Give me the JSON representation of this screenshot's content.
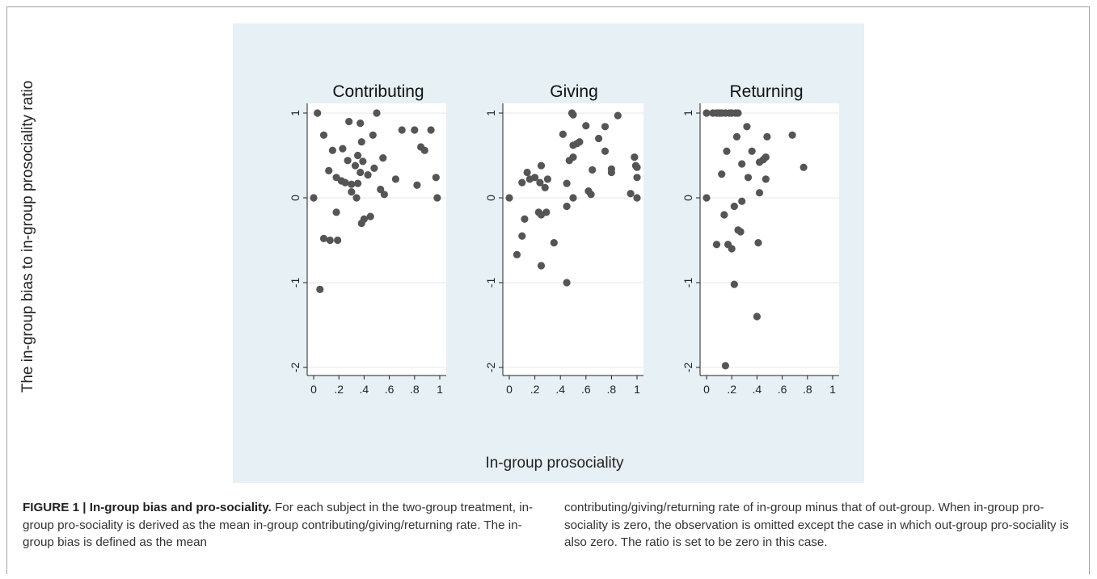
{
  "figure": {
    "y_axis_title": "The in-group bias to in-group prosociality ratio",
    "x_axis_title": "In-group prosociality"
  },
  "caption": {
    "label": "FIGURE 1 | In-group bias and pro-sociality.",
    "col1": "For each subject in the two-group treatment, in-group pro-sociality is derived as the mean in-group contributing/giving/returning rate. The in-group bias is defined as the mean",
    "col2": "contributing/giving/returning rate of in-group minus that of out-group. When in-group pro-sociality is zero, the observation is omitted except the case in which out-group pro-sociality is also zero. The ratio is set to be zero in this case."
  },
  "colors": {
    "background": "#e7f0f4",
    "panel": "#ffffff",
    "marker": "#555555",
    "grid": "#e8eef0"
  },
  "chart_data": [
    {
      "type": "scatter",
      "title": "Contributing",
      "xlim": [
        0,
        1
      ],
      "ylim": [
        -2,
        1
      ],
      "x_ticks": [
        "0",
        ".2",
        ".4",
        ".6",
        ".8",
        "1"
      ],
      "y_ticks": [
        "-2",
        "-1",
        "0",
        "1"
      ],
      "grid": true,
      "points": [
        [
          0.0,
          0.0
        ],
        [
          0.03,
          1.0
        ],
        [
          0.05,
          -1.08
        ],
        [
          0.08,
          0.74
        ],
        [
          0.08,
          -0.48
        ],
        [
          0.12,
          0.32
        ],
        [
          0.13,
          -0.5
        ],
        [
          0.15,
          0.56
        ],
        [
          0.18,
          -0.17
        ],
        [
          0.18,
          0.24
        ],
        [
          0.19,
          -0.5
        ],
        [
          0.22,
          0.2
        ],
        [
          0.23,
          0.58
        ],
        [
          0.25,
          0.18
        ],
        [
          0.27,
          0.44
        ],
        [
          0.28,
          0.9
        ],
        [
          0.3,
          0.07
        ],
        [
          0.3,
          0.16
        ],
        [
          0.33,
          0.38
        ],
        [
          0.34,
          0.0
        ],
        [
          0.35,
          0.5
        ],
        [
          0.35,
          0.17
        ],
        [
          0.37,
          0.88
        ],
        [
          0.37,
          0.3
        ],
        [
          0.38,
          0.66
        ],
        [
          0.38,
          -0.3
        ],
        [
          0.39,
          0.43
        ],
        [
          0.4,
          -0.25
        ],
        [
          0.43,
          0.27
        ],
        [
          0.45,
          -0.22
        ],
        [
          0.47,
          0.74
        ],
        [
          0.48,
          0.35
        ],
        [
          0.5,
          1.0
        ],
        [
          0.53,
          0.1
        ],
        [
          0.55,
          0.47
        ],
        [
          0.56,
          0.04
        ],
        [
          0.65,
          0.22
        ],
        [
          0.7,
          0.8
        ],
        [
          0.8,
          0.8
        ],
        [
          0.82,
          0.15
        ],
        [
          0.85,
          0.6
        ],
        [
          0.88,
          0.56
        ],
        [
          0.93,
          0.8
        ],
        [
          0.97,
          0.24
        ],
        [
          0.98,
          0.0
        ]
      ]
    },
    {
      "type": "scatter",
      "title": "Giving",
      "xlim": [
        0,
        1
      ],
      "ylim": [
        -2,
        1
      ],
      "x_ticks": [
        "0",
        ".2",
        ".4",
        ".6",
        ".8",
        "1"
      ],
      "y_ticks": [
        "-2",
        "-1",
        "0",
        "1"
      ],
      "grid": true,
      "points": [
        [
          0.0,
          0.0
        ],
        [
          0.06,
          -0.67
        ],
        [
          0.1,
          0.18
        ],
        [
          0.1,
          -0.45
        ],
        [
          0.12,
          -0.25
        ],
        [
          0.14,
          0.3
        ],
        [
          0.16,
          0.22
        ],
        [
          0.2,
          0.24
        ],
        [
          0.23,
          -0.17
        ],
        [
          0.24,
          0.18
        ],
        [
          0.25,
          0.38
        ],
        [
          0.25,
          -0.2
        ],
        [
          0.25,
          -0.8
        ],
        [
          0.28,
          0.12
        ],
        [
          0.29,
          -0.17
        ],
        [
          0.3,
          0.22
        ],
        [
          0.35,
          -0.53
        ],
        [
          0.42,
          0.75
        ],
        [
          0.45,
          0.17
        ],
        [
          0.45,
          -0.1
        ],
        [
          0.45,
          -1.0
        ],
        [
          0.47,
          0.44
        ],
        [
          0.49,
          1.0
        ],
        [
          0.5,
          0.98
        ],
        [
          0.5,
          0.62
        ],
        [
          0.5,
          0.48
        ],
        [
          0.5,
          0.0
        ],
        [
          0.53,
          0.64
        ],
        [
          0.55,
          0.66
        ],
        [
          0.6,
          0.85
        ],
        [
          0.62,
          0.08
        ],
        [
          0.64,
          0.04
        ],
        [
          0.65,
          0.33
        ],
        [
          0.7,
          0.7
        ],
        [
          0.75,
          0.84
        ],
        [
          0.75,
          0.55
        ],
        [
          0.8,
          0.34
        ],
        [
          0.8,
          0.3
        ],
        [
          0.85,
          0.97
        ],
        [
          0.95,
          0.05
        ],
        [
          0.98,
          0.48
        ],
        [
          0.99,
          0.38
        ],
        [
          1.0,
          0.36
        ],
        [
          1.0,
          0.24
        ],
        [
          1.0,
          0.0
        ]
      ]
    },
    {
      "type": "scatter",
      "title": "Returning",
      "xlim": [
        0,
        1
      ],
      "ylim": [
        -2,
        1
      ],
      "x_ticks": [
        "0",
        ".2",
        ".4",
        ".6",
        ".8",
        "1"
      ],
      "y_ticks": [
        "-2",
        "-1",
        "0",
        "1"
      ],
      "grid": true,
      "points": [
        [
          0.0,
          0.0
        ],
        [
          0.0,
          1.0
        ],
        [
          0.05,
          1.0
        ],
        [
          0.08,
          1.0
        ],
        [
          0.1,
          1.0
        ],
        [
          0.12,
          1.0
        ],
        [
          0.15,
          1.0
        ],
        [
          0.18,
          1.0
        ],
        [
          0.2,
          1.0
        ],
        [
          0.23,
          1.0
        ],
        [
          0.25,
          1.0
        ],
        [
          0.08,
          -0.55
        ],
        [
          0.12,
          0.28
        ],
        [
          0.14,
          -0.2
        ],
        [
          0.15,
          -1.98
        ],
        [
          0.16,
          0.55
        ],
        [
          0.17,
          -0.55
        ],
        [
          0.2,
          -0.6
        ],
        [
          0.22,
          -0.1
        ],
        [
          0.22,
          -1.02
        ],
        [
          0.24,
          0.72
        ],
        [
          0.25,
          -0.38
        ],
        [
          0.27,
          -0.4
        ],
        [
          0.28,
          0.4
        ],
        [
          0.28,
          -0.04
        ],
        [
          0.32,
          0.84
        ],
        [
          0.33,
          0.24
        ],
        [
          0.36,
          0.55
        ],
        [
          0.4,
          -1.4
        ],
        [
          0.41,
          -0.53
        ],
        [
          0.42,
          0.42
        ],
        [
          0.42,
          0.06
        ],
        [
          0.45,
          0.45
        ],
        [
          0.47,
          0.22
        ],
        [
          0.47,
          0.48
        ],
        [
          0.48,
          0.72
        ],
        [
          0.68,
          0.74
        ],
        [
          0.77,
          0.36
        ]
      ]
    }
  ]
}
